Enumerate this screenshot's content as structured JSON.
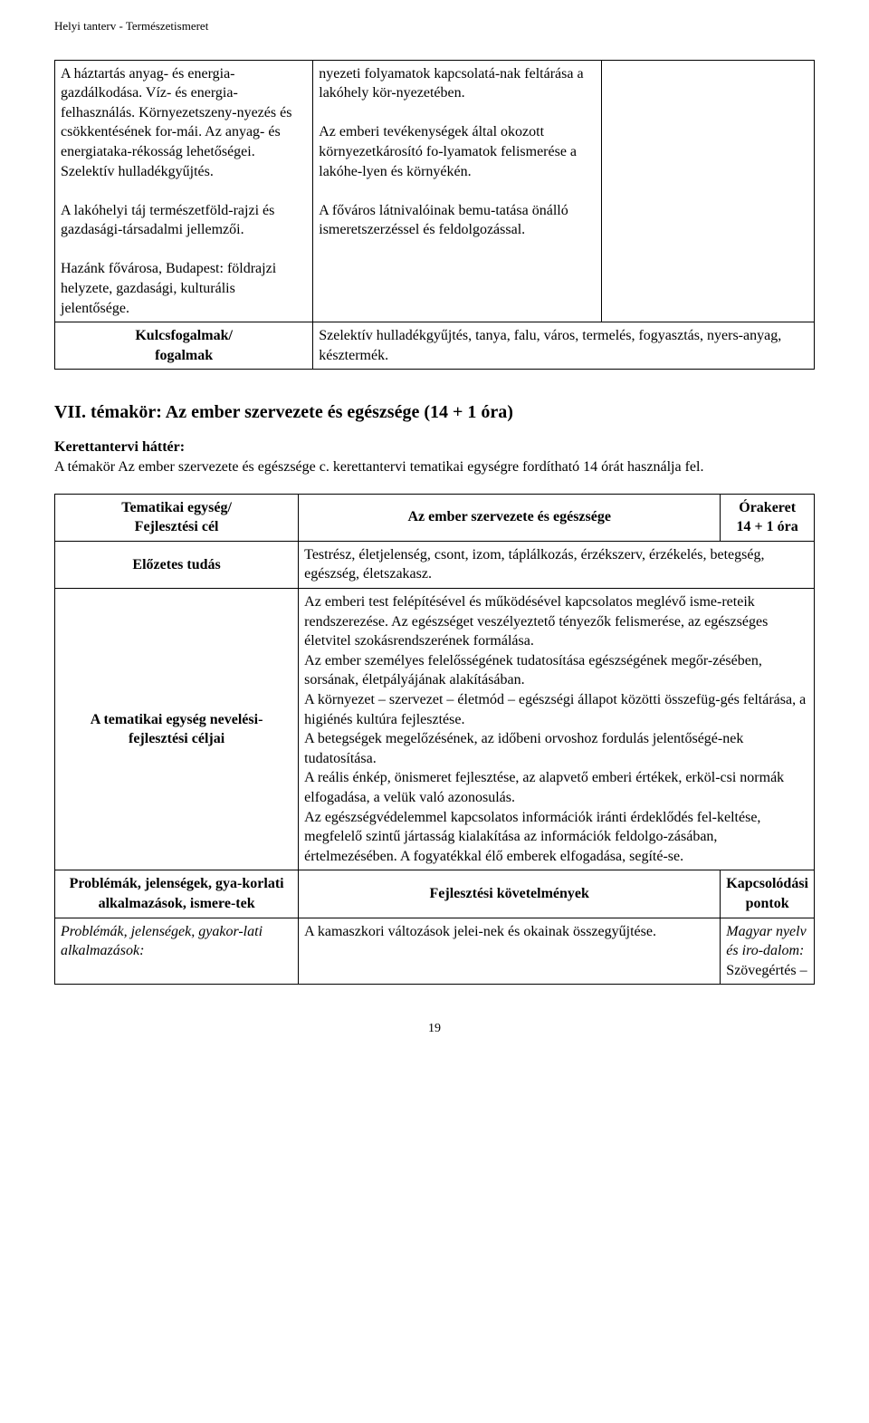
{
  "header": "Helyi tanterv - Természetismeret",
  "table1": {
    "r1c1": "A háztartás anyag- és energia-gazdálkodása. Víz- és energia-felhasználás. Környezetszeny-nyezés és csökkentésének for-mái. Az anyag- és energiataka-rékosság lehetőségei. Szelektív hulladékgyűjtés.\n\nA lakóhelyi táj természetföld-rajzi és gazdasági-társadalmi jellemzői.\n\nHazánk fővárosa, Budapest: földrajzi helyzete, gazdasági, kulturális jelentősége.",
    "r1c2": "nyezeti folyamatok kapcsolatá-nak feltárása a lakóhely kör-nyezetében.\n\nAz emberi tevékenységek által okozott környezetkárosító fo-lyamatok felismerése a lakóhe-lyen és környékén.\n\nA főváros látnivalóinak bemu-tatása önálló ismeretszerzéssel és feldolgozással.",
    "r1c3": "",
    "r2c1": "Kulcsfogalmak/\nfogalmak",
    "r2c2": "Szelektív hulladékgyűjtés, tanya, falu, város, termelés, fogyasztás, nyers-anyag, késztermék."
  },
  "section": {
    "title": "VII. témakör: Az ember szervezete és egészsége (14 + 1 óra)",
    "subhead": "Kerettantervi háttér:",
    "paragraph": "A témakör Az ember szervezete és egészsége c. kerettantervi tematikai egységre fordítható 14 órát használja fel."
  },
  "table2": {
    "r1c1": "Tematikai egység/\nFejlesztési cél",
    "r1c2": "Az ember szervezete és egészsége",
    "r1c3": "Órakeret\n14 + 1 óra",
    "r2c1": "Előzetes tudás",
    "r2c2": "Testrész, életjelenség, csont, izom, táplálkozás, érzékszerv, érzékelés, betegség, egészség, életszakasz.",
    "r3c1": "A tematikai egység nevelési-fejlesztési céljai",
    "r3c2": "Az emberi test felépítésével és működésével kapcsolatos meglévő isme-reteik rendszerezése. Az egészséget veszélyeztető tényezők felismerése, az egészséges életvitel szokásrendszerének formálása.\nAz ember személyes felelősségének tudatosítása egészségének megőr-zésében, sorsának, életpályájának alakításában.\nA környezet – szervezet – életmód – egészségi állapot közötti összefüg-gés feltárása, a higiénés kultúra fejlesztése.\nA betegségek megelőzésének, az időbeni orvoshoz fordulás jelentőségé-nek tudatosítása.\nA reális énkép, önismeret fejlesztése, az alapvető emberi értékek, erköl-csi normák elfogadása, a velük való azonosulás.\nAz egészségvédelemmel kapcsolatos információk iránti érdeklődés fel-keltése, megfelelő szintű jártasság kialakítása az információk feldolgo-zásában, értelmezésében. A fogyatékkal élő emberek elfogadása, segíté-se."
  },
  "table3": {
    "h1": "Problémák, jelenségek, gya-korlati alkalmazások, ismere-tek",
    "h2": "Fejlesztési követelmények",
    "h3": "Kapcsolódási pontok",
    "r1c1": "Problémák, jelenségek, gyakor-lati alkalmazások:",
    "r1c2": "A kamaszkori változások jelei-nek és okainak összegyűjtése.",
    "r1c3_i": "Magyar nyelv és iro-dalom:",
    "r1c3_rest": " Szövegértés –"
  },
  "pagenum": "19"
}
